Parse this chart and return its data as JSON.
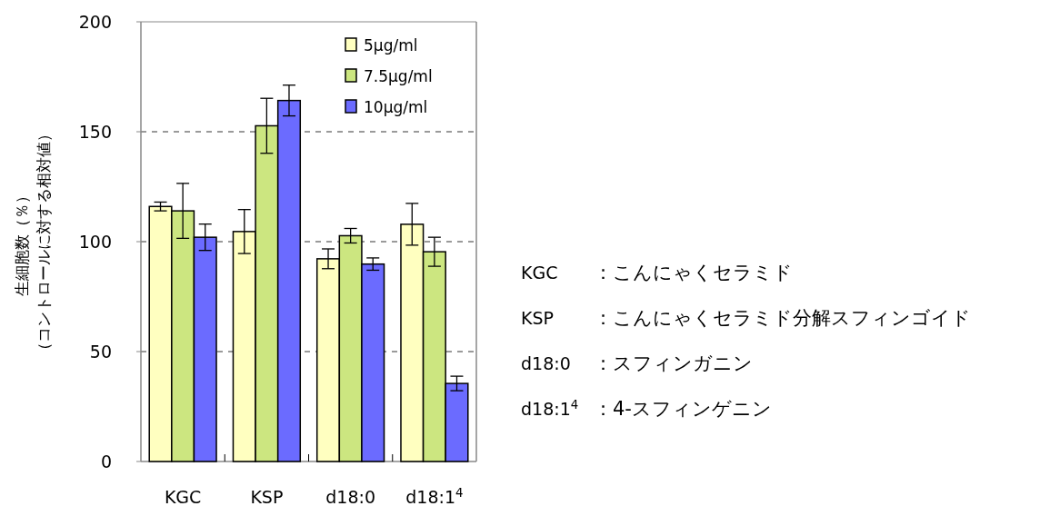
{
  "chart_data": {
    "type": "bar",
    "ylabel": "生細胞数（％）（コントロールに対する相対値）",
    "categories": [
      "KGC",
      "KSP",
      "d18:0",
      "d18:1$^{4}$"
    ],
    "series": [
      {
        "name": "5μg/ml",
        "color": "#ffffc0",
        "values": [
          116,
          104.6,
          92.2,
          107.9
        ],
        "errors": [
          2,
          10,
          4.5,
          9.5
        ]
      },
      {
        "name": "7.5μg/ml",
        "color": "#cce680",
        "values": [
          114,
          152.7,
          102.7,
          95.4
        ],
        "errors": [
          12.5,
          12.5,
          3.3,
          6.6
        ]
      },
      {
        "name": "10μg/ml",
        "color": "#6b6bff",
        "values": [
          102,
          164.2,
          89.8,
          35.5
        ],
        "errors": [
          6,
          7,
          2.8,
          3.3
        ]
      }
    ],
    "ylim": [
      0,
      200
    ],
    "yticks": [
      0,
      50,
      100,
      150,
      200
    ],
    "grid": "y",
    "legend": "top right",
    "annotations": [
      "KGC：こんにゃくセラミド",
      "KSP：こんにゃくセラミド分解スフィンゴイド",
      "d18:0：スフィンガニン",
      "d18:1$^{4}$：4-スフィンゲニン"
    ]
  }
}
